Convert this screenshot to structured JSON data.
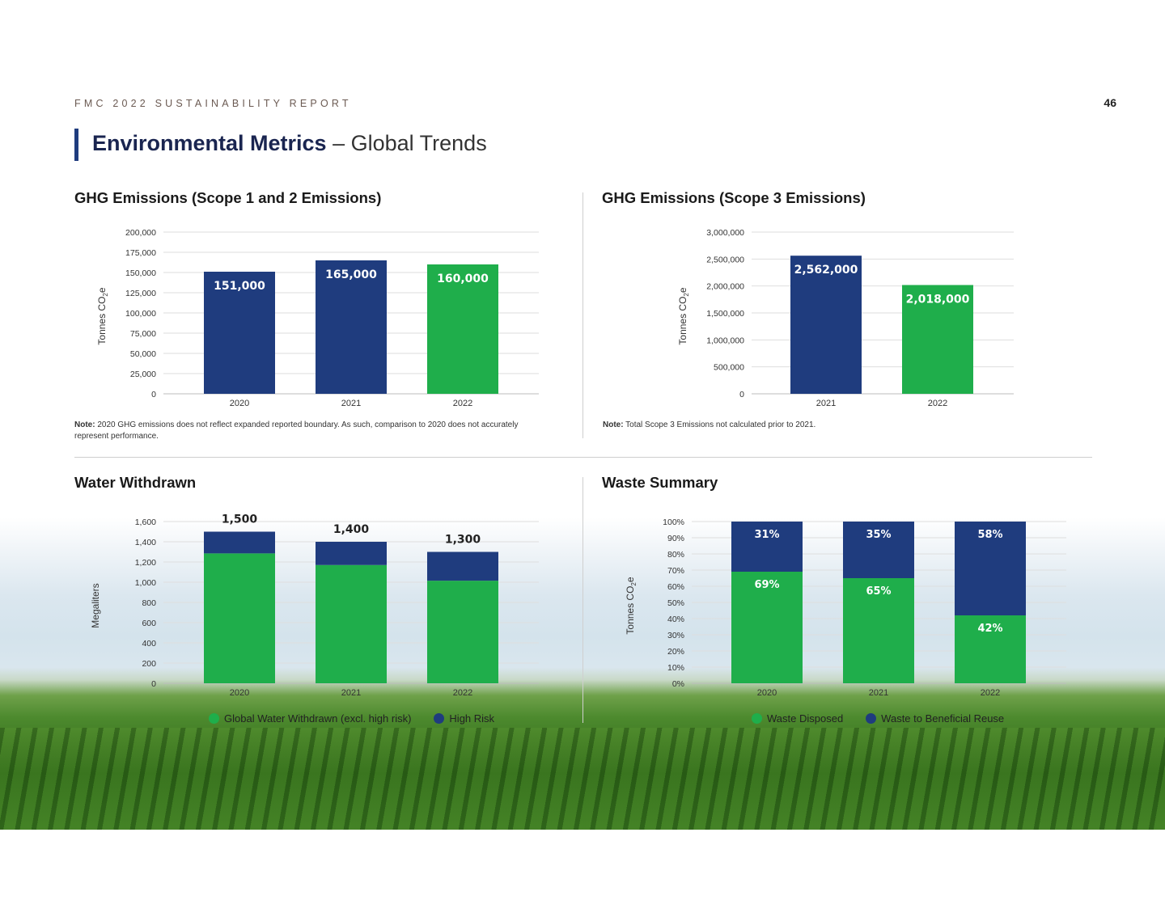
{
  "header": {
    "report_label": "FMC 2022 SUSTAINABILITY REPORT",
    "page_number": "46",
    "title_bold": "Environmental Metrics",
    "title_light": " – Global Trends"
  },
  "colors": {
    "navy": "#1f3c7e",
    "green": "#1fae4b"
  },
  "sections": {
    "ghg12": {
      "heading": "GHG Emissions (Scope 1 and 2 Emissions)",
      "note_label": "Note:",
      "note_text": " 2020 GHG emissions does not reflect expanded reported boundary. As such, comparison to 2020 does not accurately represent performance."
    },
    "ghg3": {
      "heading": "GHG Emissions (Scope 3 Emissions)",
      "note_label": "Note:",
      "note_text": " Total Scope 3 Emissions not calculated prior to 2021."
    },
    "water": {
      "heading": "Water Withdrawn"
    },
    "waste": {
      "heading": "Waste Summary"
    }
  },
  "chart_data": [
    {
      "id": "ghg12",
      "type": "bar",
      "title": "GHG Emissions (Scope 1 and 2 Emissions)",
      "ylabel": "Tonnes CO2e",
      "categories": [
        "2020",
        "2021",
        "2022"
      ],
      "values": [
        151000,
        165000,
        160000
      ],
      "value_labels": [
        "151,000",
        "165,000",
        "160,000"
      ],
      "bar_colors": [
        "#1f3c7e",
        "#1f3c7e",
        "#1fae4b"
      ],
      "ylim": [
        0,
        200000
      ],
      "yticks": [
        0,
        25000,
        50000,
        75000,
        100000,
        125000,
        150000,
        175000,
        200000
      ],
      "ytick_labels": [
        "0",
        "25,000",
        "50,000",
        "75,000",
        "100,000",
        "125,000",
        "150,000",
        "175,000",
        "200,000"
      ],
      "grid": true
    },
    {
      "id": "ghg3",
      "type": "bar",
      "title": "GHG Emissions (Scope 3 Emissions)",
      "ylabel": "Tonnes CO2e",
      "categories": [
        "2021",
        "2022"
      ],
      "values": [
        2562000,
        2018000
      ],
      "value_labels": [
        "2,562,000",
        "2,018,000"
      ],
      "bar_colors": [
        "#1f3c7e",
        "#1fae4b"
      ],
      "ylim": [
        0,
        3000000
      ],
      "yticks": [
        0,
        500000,
        1000000,
        1500000,
        2000000,
        2500000,
        3000000
      ],
      "ytick_labels": [
        "0",
        "500,000",
        "1,000,000",
        "1,500,000",
        "2,000,000",
        "2,500,000",
        "3,000,000"
      ],
      "grid": true
    },
    {
      "id": "water",
      "type": "bar",
      "stacked": true,
      "title": "Water Withdrawn",
      "ylabel": "Megaliters",
      "categories": [
        "2020",
        "2021",
        "2022"
      ],
      "series": [
        {
          "name": "Global Water Withdrawn (excl. high risk)",
          "color": "#1fae4b",
          "values": [
            1285,
            1170,
            1015
          ]
        },
        {
          "name": "High Risk",
          "color": "#1f3c7e",
          "values": [
            215,
            230,
            285
          ]
        }
      ],
      "total_labels": [
        "1,500",
        "1,400",
        "1,300"
      ],
      "totals": [
        1500,
        1400,
        1300
      ],
      "ylim": [
        0,
        1600
      ],
      "yticks": [
        0,
        200,
        400,
        600,
        800,
        1000,
        1200,
        1400,
        1600
      ],
      "ytick_labels": [
        "0",
        "200",
        "400",
        "600",
        "800",
        "1,000",
        "1,200",
        "1,400",
        "1,600"
      ],
      "legend": "bottom",
      "grid": true
    },
    {
      "id": "waste",
      "type": "bar",
      "stacked": true,
      "title": "Waste Summary",
      "ylabel": "Tonnes CO2e",
      "categories": [
        "2020",
        "2021",
        "2022"
      ],
      "series": [
        {
          "name": "Waste Disposed",
          "color": "#1fae4b",
          "values": [
            69,
            65,
            42
          ],
          "labels": [
            "69%",
            "65%",
            "42%"
          ]
        },
        {
          "name": "Waste to Beneficial Reuse",
          "color": "#1f3c7e",
          "values": [
            31,
            35,
            58
          ],
          "labels": [
            "31%",
            "35%",
            "58%"
          ]
        }
      ],
      "ylim": [
        0,
        100
      ],
      "yticks": [
        0,
        10,
        20,
        30,
        40,
        50,
        60,
        70,
        80,
        90,
        100
      ],
      "ytick_labels": [
        "0%",
        "10%",
        "20%",
        "30%",
        "40%",
        "50%",
        "60%",
        "70%",
        "80%",
        "90%",
        "100%"
      ],
      "legend": "bottom",
      "grid": true
    }
  ]
}
